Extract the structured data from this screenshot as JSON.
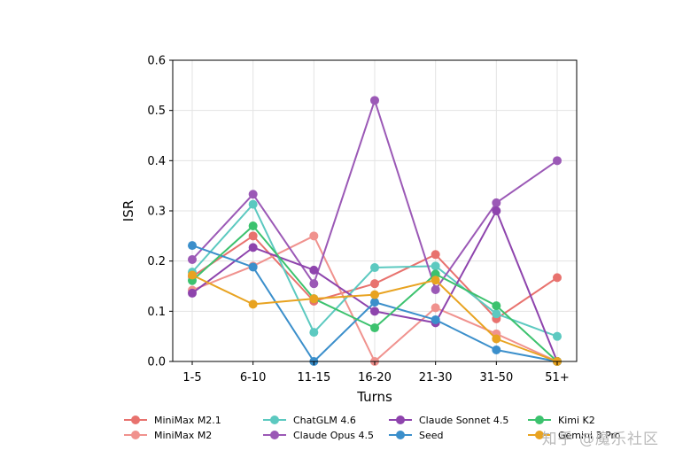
{
  "chart_data": {
    "type": "line",
    "title": "",
    "xlabel": "Turns",
    "ylabel": "ISR",
    "categories": [
      "1-5",
      "6-10",
      "11-15",
      "16-20",
      "21-30",
      "31-50",
      "51+"
    ],
    "ylim": [
      0,
      0.6
    ],
    "yticks": [
      "0.0",
      "0.1",
      "0.2",
      "0.3",
      "0.4",
      "0.5",
      "0.6"
    ],
    "grid": true,
    "legend_position": "bottom",
    "series": [
      {
        "name": "MiniMax M2.1",
        "color": "#e8726e",
        "values": [
          0.169,
          0.25,
          0.12,
          0.155,
          0.213,
          0.085,
          0.167
        ]
      },
      {
        "name": "MiniMax M2",
        "color": "#f0928e",
        "values": [
          0.142,
          0.19,
          0.25,
          0.0,
          0.107,
          0.055,
          0.0
        ]
      },
      {
        "name": "ChatGLM 4.6",
        "color": "#5cc9c0",
        "values": [
          0.178,
          0.313,
          0.058,
          0.187,
          0.19,
          0.095,
          0.05
        ]
      },
      {
        "name": "Claude Opus 4.5",
        "color": "#9b59b6",
        "values": [
          0.203,
          0.333,
          0.155,
          0.52,
          0.143,
          0.316,
          0.4
        ]
      },
      {
        "name": "Claude Sonnet 4.5",
        "color": "#8e44ad",
        "values": [
          0.136,
          0.227,
          0.182,
          0.1,
          0.077,
          0.3,
          0.0
        ]
      },
      {
        "name": "Seed",
        "color": "#3b8fcb",
        "values": [
          0.231,
          0.188,
          0.0,
          0.118,
          0.083,
          0.023,
          0.0
        ]
      },
      {
        "name": "Kimi K2",
        "color": "#3cc26e",
        "values": [
          0.161,
          0.27,
          0.125,
          0.067,
          0.174,
          0.111,
          0.0
        ]
      },
      {
        "name": "Gemini 3 Pro",
        "color": "#e8a321",
        "values": [
          0.172,
          0.114,
          0.125,
          0.133,
          0.162,
          0.045,
          0.0
        ]
      }
    ]
  },
  "watermark": "知乎 @魔乐社区"
}
